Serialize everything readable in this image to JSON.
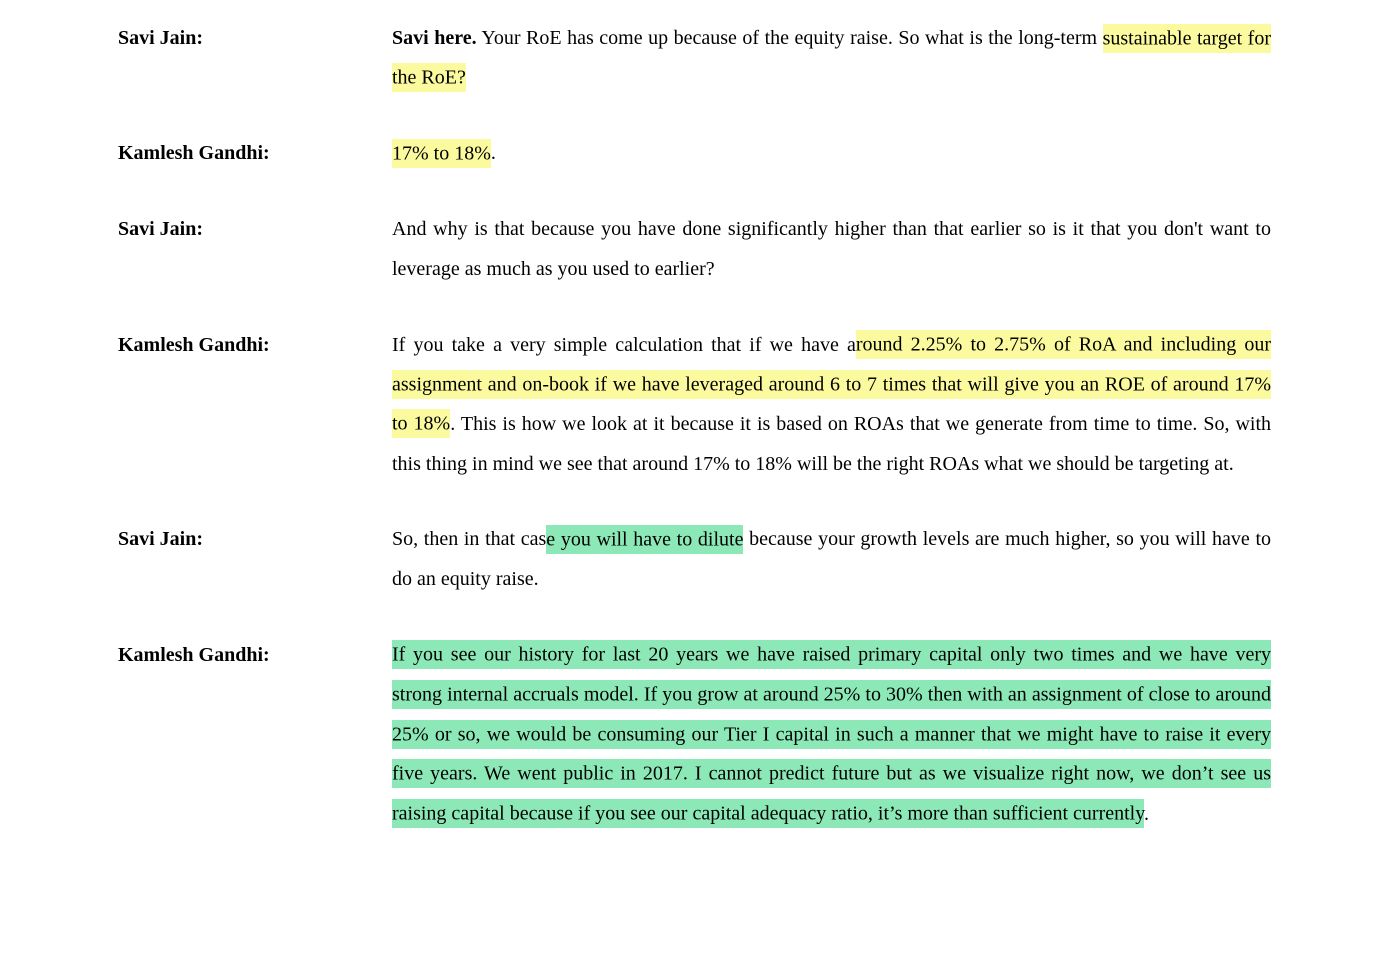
{
  "page": {
    "background": "#ffffff",
    "text_color": "#000000"
  },
  "highlight_colors": {
    "yellow": "#fbfa9e",
    "green": "#8ce9b7"
  },
  "transcript": [
    {
      "speaker": "Savi Jain:",
      "segments": [
        {
          "text": "Savi here.",
          "bold": true
        },
        {
          "text": " Your RoE has come up because of the equity raise. So what is the long-term "
        },
        {
          "text": "sustainable target for the RoE?",
          "highlight": "yellow"
        }
      ]
    },
    {
      "speaker": "Kamlesh Gandhi:",
      "segments": [
        {
          "text": "17% to 18%",
          "highlight": "yellow"
        },
        {
          "text": "."
        }
      ]
    },
    {
      "speaker": "Savi Jain:",
      "segments": [
        {
          "text": "And why is that because you have done significantly higher than that earlier so is it that you don't want to leverage as much as you used to earlier?"
        }
      ]
    },
    {
      "speaker": "Kamlesh Gandhi:",
      "segments": [
        {
          "text": "If you take a very simple calculation that if we have a"
        },
        {
          "text": "round 2.25% to 2.75% of RoA and including our assignment and on-book if we have leveraged around 6 to 7 times that will give you an ROE of around 17% to 18%",
          "highlight": "yellow"
        },
        {
          "text": ". This is how we look at it because it is based on ROAs that we generate from time to time. So, with this thing in mind we see that around 17% to 18% will be the right ROAs what we should be targeting at."
        }
      ]
    },
    {
      "speaker": "Savi Jain:",
      "segments": [
        {
          "text": "So, then in that cas"
        },
        {
          "text": "e you will have to dilute",
          "highlight": "green"
        },
        {
          "text": " because your growth levels are much higher, so you will have to do an equity raise."
        }
      ]
    },
    {
      "speaker": "Kamlesh Gandhi:",
      "segments": [
        {
          "text": "If you see our history for last 20 years we have raised primary capital only two times and we have very strong internal accruals model. If you grow at around 25% to 30% then with an assignment of close to around 25% or so, we would be consuming our Tier I capital in such a manner that we might have to raise it every five years. We went public in 2017. I cannot predict future but as we visualize right now, we don’t see us raising capital because if you see our capital adequacy ratio, it’s more than sufficient currently",
          "highlight": "green"
        },
        {
          "text": "."
        }
      ]
    }
  ]
}
